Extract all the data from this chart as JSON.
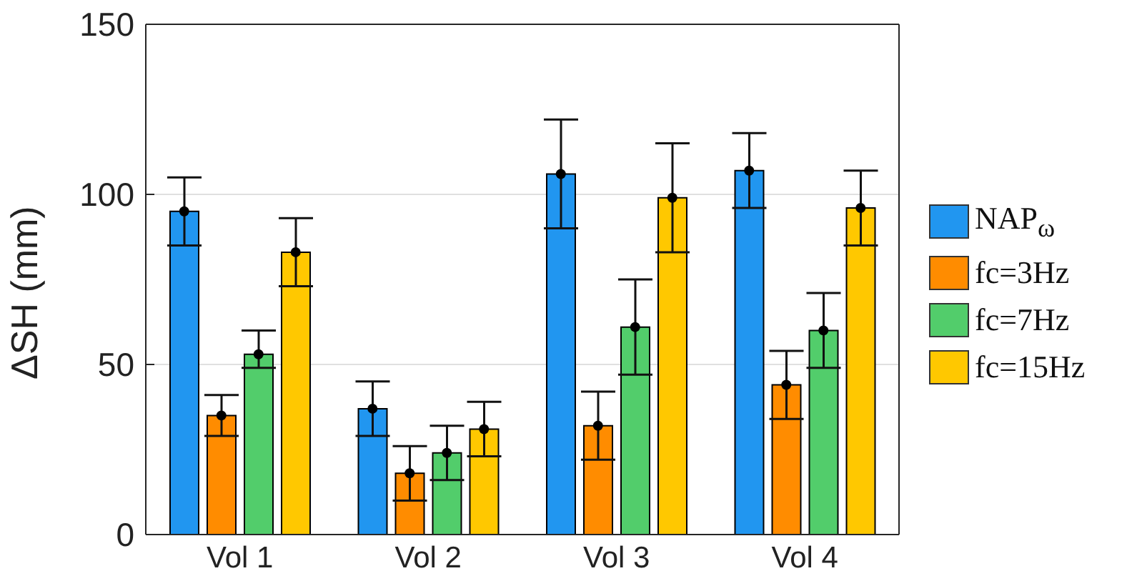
{
  "chart_data": {
    "type": "bar",
    "ylabel": "ΔSH (mm)",
    "categories": [
      "Vol 1",
      "Vol 2",
      "Vol 3",
      "Vol 4"
    ],
    "series": [
      {
        "name": "NAP$_{ω}$",
        "color": "#2196f0",
        "values": [
          95,
          37,
          106,
          107
        ],
        "errors": [
          [
            85,
            105
          ],
          [
            29,
            45
          ],
          [
            90,
            122
          ],
          [
            96,
            118
          ]
        ]
      },
      {
        "name": "fc=3Hz",
        "color": "#ff8c00",
        "values": [
          35,
          18,
          32,
          44
        ],
        "errors": [
          [
            29,
            41
          ],
          [
            10,
            26
          ],
          [
            22,
            42
          ],
          [
            34,
            54
          ]
        ]
      },
      {
        "name": "fc=7Hz",
        "color": "#52cd6b",
        "values": [
          53,
          24,
          61,
          60
        ],
        "errors": [
          [
            49,
            60
          ],
          [
            16,
            32
          ],
          [
            47,
            75
          ],
          [
            49,
            71
          ]
        ]
      },
      {
        "name": "fc=15Hz",
        "color": "#ffc800",
        "values": [
          83,
          31,
          99,
          96
        ],
        "errors": [
          [
            73,
            93
          ],
          [
            23,
            39
          ],
          [
            83,
            115
          ],
          [
            85,
            107
          ]
        ]
      },
      {
        "type": "scatter",
        "color": "#000000",
        "x": [
          "Vol 1",
          "Vol 2",
          "Vol 3",
          "Vol 4"
        ],
        "values": [
          95,
          37,
          106,
          107
        ]
      },
      {
        "type": "scatter",
        "color": "#000000",
        "x": [
          "Vol 1",
          "Vol 2",
          "Vol 3",
          "Vol 4"
        ],
        "values": [
          35,
          18,
          32,
          44
        ]
      },
      {
        "type": "scatter",
        "color": "#000000",
        "x": [
          "Vol 1",
          "Vol 2",
          "Vol 3",
          "Vol 4"
        ],
        "values": [
          53,
          24,
          61,
          60
        ]
      },
      {
        "type": "scatter",
        "color": "#000000",
        "x": [
          "Vol 1",
          "Vol 2",
          "Vol 3",
          "Vol 4"
        ],
        "values": [
          83,
          31,
          99,
          96
        ]
      }
    ],
    "ylim": [
      0,
      150
    ],
    "yticks": [
      0,
      50,
      100,
      150
    ],
    "grid": "y",
    "legend": "right",
    "marker": "circle"
  }
}
